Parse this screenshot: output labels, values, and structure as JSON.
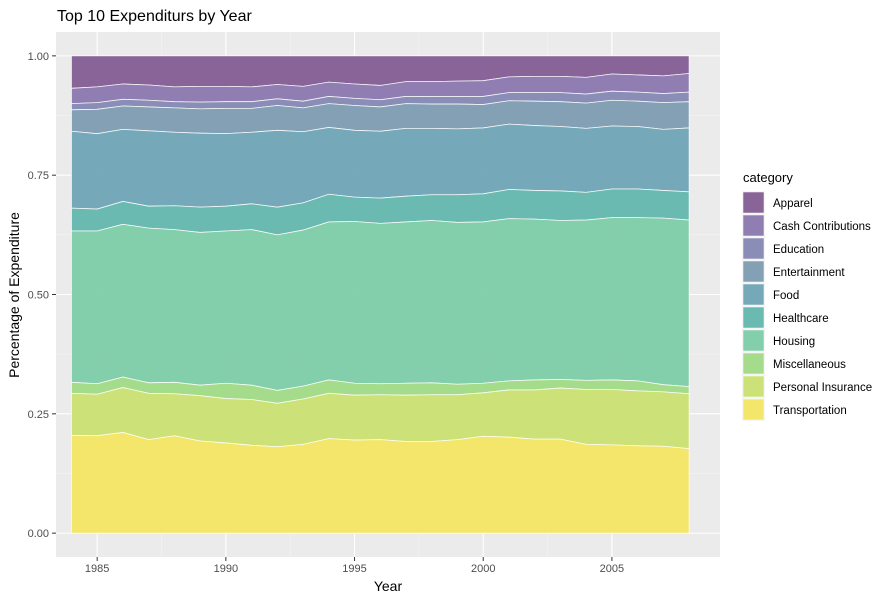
{
  "chart_data": {
    "type": "area",
    "stacked": "fill",
    "title": "Top 10 Expenditurs by Year",
    "xlabel": "Year",
    "ylabel": "Percentage of Expenditure",
    "xlim": [
      1983.4,
      2009.2
    ],
    "ylim": [
      -0.05,
      1.05
    ],
    "x_ticks": [
      1985,
      1990,
      1995,
      2000,
      2005
    ],
    "y_ticks": [
      0.0,
      0.25,
      0.5,
      0.75,
      1.0
    ],
    "y_tick_labels": [
      "0.00",
      "0.25",
      "0.50",
      "0.75",
      "1.00"
    ],
    "grid": true,
    "legend": {
      "title": "category",
      "position": "right"
    },
    "x": [
      1984,
      1985,
      1986,
      1987,
      1988,
      1989,
      1990,
      1991,
      1992,
      1993,
      1994,
      1995,
      1996,
      1997,
      1998,
      1999,
      2000,
      2001,
      2002,
      2003,
      2004,
      2005,
      2006,
      2007,
      2008
    ],
    "series": [
      {
        "name": "Transportation",
        "color": "#F4E55F",
        "values": [
          0.205,
          0.204,
          0.211,
          0.196,
          0.204,
          0.193,
          0.189,
          0.184,
          0.181,
          0.186,
          0.198,
          0.195,
          0.196,
          0.192,
          0.192,
          0.196,
          0.203,
          0.201,
          0.197,
          0.197,
          0.186,
          0.185,
          0.183,
          0.182,
          0.177
        ]
      },
      {
        "name": "Personal Insurance",
        "color": "#C9E16E",
        "values": [
          0.088,
          0.087,
          0.094,
          0.097,
          0.088,
          0.095,
          0.093,
          0.096,
          0.091,
          0.095,
          0.095,
          0.094,
          0.094,
          0.097,
          0.098,
          0.094,
          0.091,
          0.099,
          0.103,
          0.107,
          0.115,
          0.116,
          0.115,
          0.114,
          0.115
        ]
      },
      {
        "name": "Miscellaneous",
        "color": "#9DDA83",
        "values": [
          0.023,
          0.022,
          0.022,
          0.022,
          0.024,
          0.022,
          0.032,
          0.03,
          0.027,
          0.027,
          0.028,
          0.025,
          0.023,
          0.025,
          0.025,
          0.022,
          0.02,
          0.019,
          0.021,
          0.018,
          0.019,
          0.02,
          0.021,
          0.015,
          0.015
        ]
      },
      {
        "name": "Housing",
        "color": "#79CBA5",
        "values": [
          0.317,
          0.32,
          0.32,
          0.324,
          0.32,
          0.32,
          0.319,
          0.326,
          0.326,
          0.327,
          0.331,
          0.339,
          0.336,
          0.338,
          0.34,
          0.339,
          0.338,
          0.34,
          0.337,
          0.333,
          0.336,
          0.34,
          0.342,
          0.349,
          0.349
        ]
      },
      {
        "name": "Healthcare",
        "color": "#5EB5AD",
        "values": [
          0.048,
          0.046,
          0.048,
          0.046,
          0.05,
          0.053,
          0.052,
          0.054,
          0.058,
          0.057,
          0.058,
          0.051,
          0.053,
          0.054,
          0.054,
          0.058,
          0.059,
          0.061,
          0.06,
          0.062,
          0.058,
          0.06,
          0.06,
          0.058,
          0.059
        ]
      },
      {
        "name": "Food",
        "color": "#6AA2B3",
        "values": [
          0.161,
          0.158,
          0.151,
          0.158,
          0.154,
          0.155,
          0.152,
          0.15,
          0.161,
          0.149,
          0.14,
          0.14,
          0.14,
          0.142,
          0.139,
          0.138,
          0.138,
          0.137,
          0.136,
          0.135,
          0.134,
          0.132,
          0.131,
          0.128,
          0.134
        ]
      },
      {
        "name": "Entertainment",
        "color": "#7A99B0",
        "values": [
          0.045,
          0.051,
          0.049,
          0.05,
          0.051,
          0.051,
          0.053,
          0.05,
          0.052,
          0.05,
          0.05,
          0.052,
          0.051,
          0.052,
          0.051,
          0.052,
          0.049,
          0.049,
          0.051,
          0.052,
          0.053,
          0.054,
          0.053,
          0.056,
          0.055
        ]
      },
      {
        "name": "Education",
        "color": "#8184B0",
        "values": [
          0.013,
          0.014,
          0.014,
          0.014,
          0.013,
          0.014,
          0.014,
          0.014,
          0.014,
          0.014,
          0.015,
          0.015,
          0.015,
          0.015,
          0.016,
          0.016,
          0.017,
          0.017,
          0.018,
          0.019,
          0.019,
          0.019,
          0.019,
          0.019,
          0.02
        ]
      },
      {
        "name": "Cash Contributions",
        "color": "#8874AD",
        "values": [
          0.032,
          0.033,
          0.032,
          0.032,
          0.031,
          0.033,
          0.032,
          0.031,
          0.03,
          0.031,
          0.03,
          0.03,
          0.03,
          0.031,
          0.031,
          0.032,
          0.033,
          0.033,
          0.034,
          0.034,
          0.035,
          0.036,
          0.036,
          0.037,
          0.039
        ]
      },
      {
        "name": "Apparel",
        "color": "#7F5891",
        "values": [
          0.068,
          0.065,
          0.059,
          0.061,
          0.065,
          0.064,
          0.064,
          0.065,
          0.06,
          0.064,
          0.055,
          0.059,
          0.062,
          0.054,
          0.054,
          0.053,
          0.052,
          0.044,
          0.043,
          0.043,
          0.045,
          0.038,
          0.04,
          0.042,
          0.037
        ]
      }
    ]
  }
}
